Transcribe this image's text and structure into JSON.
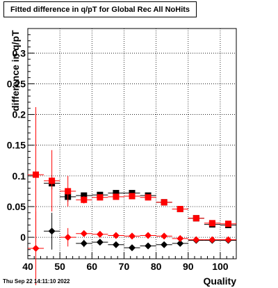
{
  "chart_data": {
    "type": "scatter",
    "title": "Fitted difference in q/pT for Global Rec All NoHits",
    "xlabel": "Quality",
    "ylabel": "difference in q/pT",
    "timestamp": "Thu Sep 22 14:11:10 2022",
    "xlim": [
      40,
      105
    ],
    "ylim": [
      -0.035,
      0.34
    ],
    "grid": true,
    "x_ticks": [
      40,
      50,
      60,
      70,
      80,
      90,
      100
    ],
    "y_ticks": [
      0,
      0.05,
      0.1,
      0.15,
      0.2,
      0.25,
      0.3
    ],
    "y_tick_labels": [
      "0",
      "0.05",
      "0.1",
      "0.15",
      "0.2",
      "0.25",
      "0.3"
    ],
    "x_bin_halfwidth": 2.5,
    "series": [
      {
        "marker": "square",
        "color": "#000000",
        "x": [
          47.5,
          52.5,
          57.5,
          62.5,
          67.5,
          72.5,
          77.5,
          82.5,
          87.5,
          92.5,
          97.5,
          102.5
        ],
        "y": [
          0.088,
          0.066,
          0.068,
          0.069,
          0.072,
          0.072,
          0.068,
          0.057,
          0.046,
          0.031,
          0.021,
          0.02
        ],
        "err": [
          0.01,
          0.008,
          0.004,
          0.003,
          0.003,
          0.003,
          0.003,
          0.002,
          0.002,
          0.002,
          0.002,
          0.002
        ]
      },
      {
        "marker": "square",
        "color": "#ff0000",
        "x": [
          42.5,
          47.5,
          52.5,
          57.5,
          62.5,
          67.5,
          72.5,
          77.5,
          82.5,
          87.5,
          92.5,
          97.5,
          102.5
        ],
        "y": [
          0.102,
          0.092,
          0.075,
          0.061,
          0.065,
          0.066,
          0.067,
          0.065,
          0.057,
          0.046,
          0.031,
          0.023,
          0.022
        ],
        "err": [
          0.11,
          0.05,
          0.025,
          0.006,
          0.004,
          0.003,
          0.003,
          0.003,
          0.002,
          0.002,
          0.002,
          0.002,
          0.002
        ]
      },
      {
        "marker": "diamond",
        "color": "#000000",
        "x": [
          47.5,
          57.5,
          62.5,
          67.5,
          72.5,
          77.5,
          82.5,
          87.5,
          92.5,
          97.5,
          102.5
        ],
        "y": [
          0.01,
          -0.01,
          -0.008,
          -0.012,
          -0.017,
          -0.014,
          -0.012,
          -0.01,
          -0.005,
          -0.005,
          -0.005
        ],
        "err": [
          0.03,
          0.006,
          0.004,
          0.003,
          0.003,
          0.003,
          0.003,
          0.002,
          0.002,
          0.002,
          0.002
        ]
      },
      {
        "marker": "diamond",
        "color": "#ff0000",
        "x": [
          42.5,
          52.5,
          57.5,
          62.5,
          67.5,
          72.5,
          77.5,
          82.5,
          87.5,
          92.5,
          97.5,
          102.5
        ],
        "y": [
          -0.018,
          0.0,
          0.006,
          0.005,
          0.003,
          0.002,
          0.003,
          0.002,
          -0.002,
          -0.004,
          -0.004,
          -0.004
        ],
        "err": [
          0.06,
          0.015,
          0.005,
          0.004,
          0.003,
          0.003,
          0.003,
          0.002,
          0.002,
          0.002,
          0.002,
          0.002
        ]
      }
    ]
  }
}
